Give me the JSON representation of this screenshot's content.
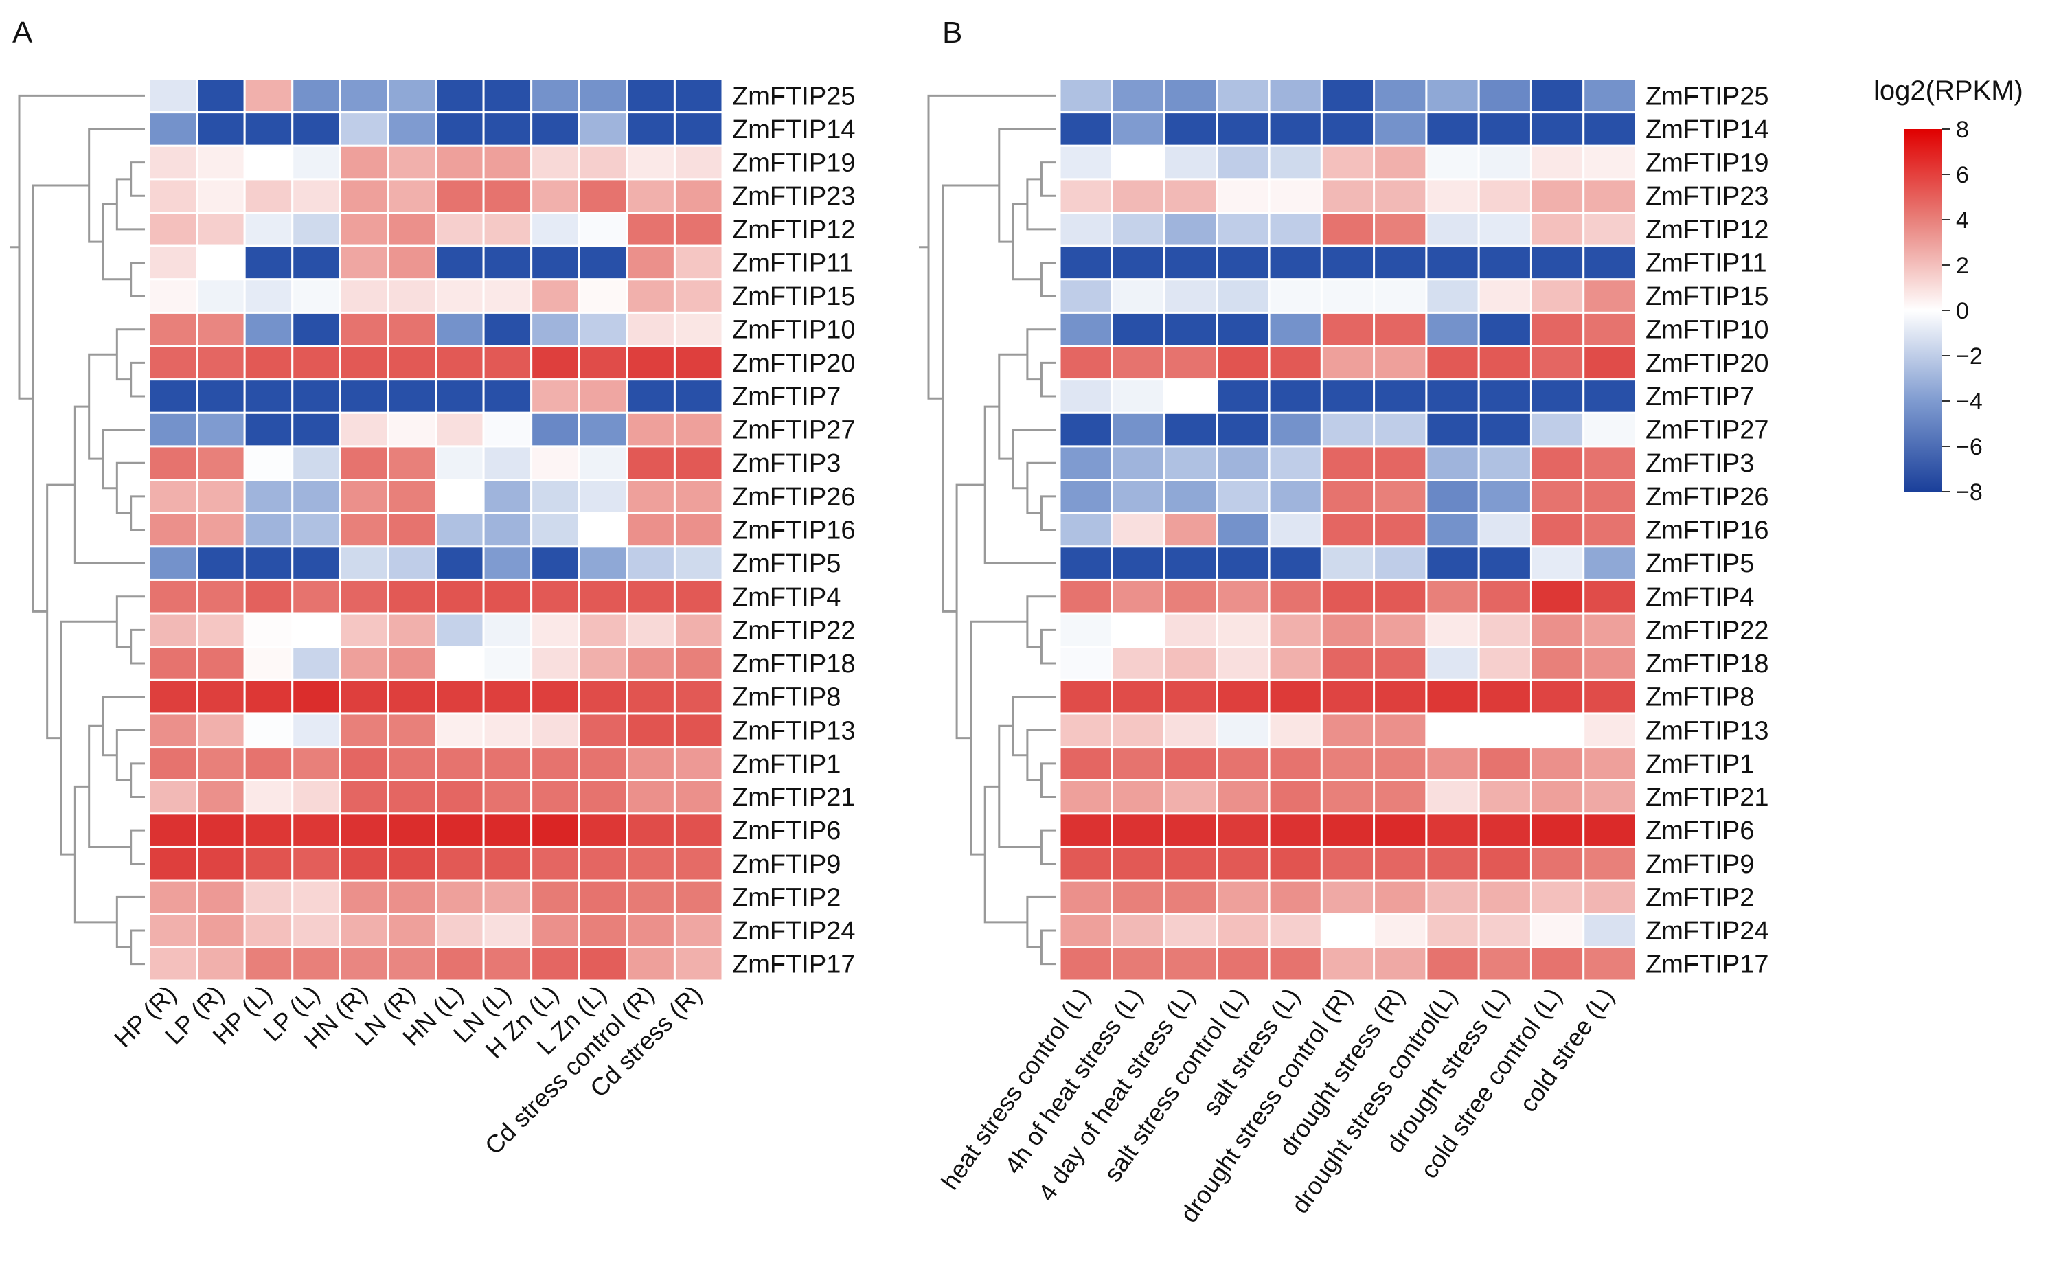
{
  "chart_data": [
    {
      "type": "heatmap",
      "panel_label": "A",
      "colorscale": {
        "min": -8,
        "max": 8,
        "low": "#2850a8",
        "mid": "#ffffff",
        "high": "#d81818"
      },
      "rows": [
        "ZmFTIP25",
        "ZmFTIP14",
        "ZmFTIP19",
        "ZmFTIP23",
        "ZmFTIP12",
        "ZmFTIP11",
        "ZmFTIP15",
        "ZmFTIP10",
        "ZmFTIP20",
        "ZmFTIP7",
        "ZmFTIP27",
        "ZmFTIP3",
        "ZmFTIP26",
        "ZmFTIP16",
        "ZmFTIP5",
        "ZmFTIP4",
        "ZmFTIP22",
        "ZmFTIP18",
        "ZmFTIP8",
        "ZmFTIP13",
        "ZmFTIP1",
        "ZmFTIP21",
        "ZmFTIP6",
        "ZmFTIP9",
        "ZmFTIP2",
        "ZmFTIP24",
        "ZmFTIP17"
      ],
      "columns": [
        "HP (R)",
        "LP (R)",
        "HP (L)",
        "LP (L)",
        "HN (R)",
        "LN (R)",
        "HN (L)",
        "LN (L)",
        "H Zn (L)",
        "L Zn (L)",
        "Cd stress control (R)",
        "Cd stress (R)"
      ],
      "values": [
        [
          -1,
          -8,
          2.5,
          -4.5,
          -4,
          -3.5,
          -8,
          -8,
          -4.5,
          -4.5,
          -8,
          -8
        ],
        [
          -4.5,
          -8,
          -8,
          -8,
          -2,
          -4,
          -8,
          -8,
          -8,
          -3,
          -8,
          -8
        ],
        [
          1,
          0.5,
          0,
          -0.5,
          3,
          2.5,
          3,
          3,
          1.2,
          1.5,
          0.7,
          1
        ],
        [
          1.3,
          0.5,
          1.5,
          1,
          3,
          2.5,
          4.5,
          4.5,
          2.5,
          4.5,
          2.5,
          3
        ],
        [
          2,
          1.5,
          -0.7,
          -1.5,
          3,
          3.5,
          1.5,
          1.7,
          -0.8,
          -0.2,
          4.5,
          4.5
        ],
        [
          1,
          0,
          -8,
          -8,
          2.8,
          3.3,
          -8,
          -8,
          -8,
          -8,
          3.5,
          1.8
        ],
        [
          0.3,
          -0.5,
          -0.8,
          -0.3,
          1,
          1,
          0.7,
          0.7,
          2.5,
          0.2,
          2.5,
          2
        ],
        [
          4,
          3.8,
          -4.5,
          -8,
          4.5,
          4.5,
          -4.5,
          -8,
          -3,
          -2,
          1,
          0.8
        ],
        [
          5,
          5,
          5.5,
          5.5,
          5.5,
          5.5,
          5.5,
          5.5,
          6.5,
          6,
          6.5,
          6.5
        ],
        [
          -8,
          -8,
          -8,
          -8,
          -8,
          -8,
          -8,
          -8,
          2.5,
          2.8,
          -8,
          -8
        ],
        [
          -4.5,
          -4,
          -8,
          -8,
          1,
          0.3,
          1,
          -0.2,
          -5,
          -4.5,
          3,
          3
        ],
        [
          4.5,
          4,
          -0.1,
          -1.5,
          4.5,
          4,
          -0.5,
          -1,
          0.3,
          -0.5,
          5.5,
          5.5
        ],
        [
          2.5,
          2.5,
          -3,
          -3,
          3.5,
          4,
          0,
          -3,
          -1.5,
          -1,
          3,
          3
        ],
        [
          3.5,
          3,
          -3,
          -2.5,
          4,
          4.5,
          -2.5,
          -3,
          -1.5,
          0,
          3.5,
          3.5
        ],
        [
          -4.5,
          -8,
          -8,
          -8,
          -1.5,
          -2,
          -8,
          -4,
          -8,
          -3.5,
          -2,
          -1.5
        ],
        [
          4.5,
          4.5,
          5.2,
          4.5,
          5,
          5.5,
          5.7,
          5.7,
          5.5,
          5.5,
          5.5,
          5.5
        ],
        [
          2.2,
          1.8,
          0.1,
          0,
          1.8,
          2.5,
          -1.8,
          -0.5,
          0.7,
          2,
          1.2,
          2.5
        ],
        [
          4.5,
          4.5,
          0.2,
          -1.7,
          3,
          3.5,
          0,
          -0.3,
          1,
          2.5,
          3.5,
          4
        ],
        [
          6.5,
          6.5,
          6.8,
          7.2,
          6.5,
          6.5,
          6.5,
          6.5,
          6.5,
          6,
          5.7,
          5.5
        ],
        [
          3.5,
          2.5,
          -0.1,
          -0.8,
          4,
          4,
          0.5,
          0.7,
          1,
          5,
          5.7,
          5.7
        ],
        [
          4.5,
          4,
          4.5,
          4,
          5,
          4.5,
          4.5,
          4.5,
          4.5,
          4.5,
          3.5,
          3.2
        ],
        [
          2.2,
          3.5,
          0.7,
          1.2,
          5,
          5,
          5,
          4.5,
          4.5,
          4.5,
          3.5,
          3.5
        ],
        [
          7,
          7,
          6.8,
          6.8,
          7,
          7.2,
          7.3,
          7.3,
          7.5,
          6.8,
          6,
          5.8
        ],
        [
          6.5,
          6.3,
          5.7,
          5.3,
          6,
          6,
          5.5,
          5.5,
          5,
          5,
          4.8,
          4.8
        ],
        [
          3,
          3.2,
          1.5,
          1.3,
          3.5,
          3.5,
          3,
          2.8,
          4.2,
          4.5,
          4.2,
          4.2
        ],
        [
          2.5,
          3,
          2,
          1.5,
          2.5,
          3,
          1.5,
          1,
          3.5,
          4,
          3.5,
          2.8
        ],
        [
          2,
          2.5,
          4,
          4,
          3.8,
          3.8,
          4.5,
          4.3,
          5,
          5.3,
          3,
          2.5
        ]
      ]
    },
    {
      "type": "heatmap",
      "panel_label": "B",
      "colorscale": {
        "min": -8,
        "max": 8,
        "low": "#2850a8",
        "mid": "#ffffff",
        "high": "#d81818"
      },
      "rows": [
        "ZmFTIP25",
        "ZmFTIP14",
        "ZmFTIP19",
        "ZmFTIP23",
        "ZmFTIP12",
        "ZmFTIP11",
        "ZmFTIP15",
        "ZmFTIP10",
        "ZmFTIP20",
        "ZmFTIP7",
        "ZmFTIP27",
        "ZmFTIP3",
        "ZmFTIP26",
        "ZmFTIP16",
        "ZmFTIP5",
        "ZmFTIP4",
        "ZmFTIP22",
        "ZmFTIP18",
        "ZmFTIP8",
        "ZmFTIP13",
        "ZmFTIP1",
        "ZmFTIP21",
        "ZmFTIP6",
        "ZmFTIP9",
        "ZmFTIP2",
        "ZmFTIP24",
        "ZmFTIP17"
      ],
      "columns": [
        "heat stress control (L)",
        "4h of heat stress (L)",
        "4 day of heat stress (L)",
        "salt stress control (L)",
        "salt stress (L)",
        "drought stress control (R)",
        "drought stress (R)",
        "drought stress control(L)",
        "drought stress (L)",
        "cold stree control (L)",
        "cold stree  (L)"
      ],
      "values": [
        [
          -2.5,
          -4,
          -4.5,
          -2.5,
          -3,
          -8,
          -4.5,
          -3.5,
          -5,
          -8,
          -4.5
        ],
        [
          -8,
          -4,
          -8,
          -8,
          -8,
          -8,
          -4.5,
          -8,
          -8,
          -8,
          -8
        ],
        [
          -0.8,
          0,
          -1,
          -2,
          -1.5,
          2,
          2.5,
          -0.3,
          -0.5,
          0.7,
          0.5
        ],
        [
          1.5,
          2.2,
          2.2,
          0.3,
          0.3,
          2.2,
          2.2,
          0.7,
          1.3,
          2.5,
          2.5
        ],
        [
          -1,
          -1.8,
          -3,
          -2,
          -2,
          4.5,
          4,
          -1,
          -0.8,
          2,
          1.5
        ],
        [
          -8,
          -8,
          -8,
          -8,
          -8,
          -8,
          -8,
          -8,
          -8,
          -8,
          -8
        ],
        [
          -2,
          -0.5,
          -1,
          -1.3,
          -0.3,
          -0.3,
          -0.3,
          -1.3,
          0.7,
          2,
          3.5
        ],
        [
          -4.5,
          -8,
          -8,
          -8,
          -4.5,
          5,
          5,
          -4.5,
          -8,
          5,
          4.5
        ],
        [
          5,
          4.5,
          4.5,
          5.7,
          5.5,
          3,
          3,
          5.5,
          5.5,
          5,
          6
        ],
        [
          -1,
          -0.5,
          0,
          -8,
          -8,
          -8,
          -8,
          -8,
          -8,
          -8,
          -8
        ],
        [
          -8,
          -4.5,
          -8,
          -8,
          -4.5,
          -2,
          -2,
          -8,
          -8,
          -2,
          -0.3
        ],
        [
          -4,
          -3,
          -2.5,
          -3,
          -2,
          5,
          5,
          -3,
          -2.5,
          5,
          4.5
        ],
        [
          -4,
          -3,
          -3.5,
          -2,
          -3,
          4.5,
          4,
          -5,
          -4,
          4.5,
          4.5
        ],
        [
          -2.5,
          1,
          3,
          -4.5,
          -1,
          5,
          5,
          -4.5,
          -1,
          5,
          4.5
        ],
        [
          -8,
          -8,
          -8,
          -8,
          -8,
          -1.5,
          -2,
          -8,
          -8,
          -0.8,
          -3.5
        ],
        [
          4.5,
          3.5,
          4,
          3.5,
          4.5,
          5.5,
          5.5,
          4,
          5,
          6.8,
          6
        ],
        [
          -0.3,
          0,
          1,
          0.8,
          2.5,
          3.5,
          3,
          0.7,
          1.5,
          3.5,
          3
        ],
        [
          -0.2,
          1.5,
          2,
          1,
          2.5,
          5,
          5,
          -1,
          1.5,
          4,
          3.5
        ],
        [
          6,
          6,
          6,
          6.5,
          6.7,
          6.3,
          6.5,
          6.8,
          6.7,
          6.3,
          6
        ],
        [
          1.8,
          1.8,
          1,
          -0.5,
          0.8,
          3.5,
          3.5,
          0,
          0,
          0,
          0.7
        ],
        [
          5,
          4.5,
          5,
          4.5,
          4.5,
          4,
          4,
          3.5,
          4.5,
          3.5,
          3
        ],
        [
          3,
          3,
          2.5,
          3.5,
          4.5,
          4,
          4,
          1,
          2.5,
          3,
          2.7
        ],
        [
          7,
          7,
          7,
          6.7,
          7,
          7.2,
          7.3,
          6.8,
          7,
          7.3,
          7.3
        ],
        [
          5.5,
          5.5,
          5.5,
          5.5,
          5.7,
          5,
          5,
          5.2,
          5.5,
          4.5,
          4
        ],
        [
          3.5,
          4,
          4,
          3,
          3.5,
          2.7,
          3,
          2.2,
          2.5,
          2,
          2.3
        ],
        [
          3,
          2.2,
          1.5,
          2,
          1.5,
          0,
          0.5,
          1.7,
          1.5,
          0.3,
          -1.2
        ],
        [
          4.5,
          4.2,
          4.2,
          4.5,
          4.5,
          2.5,
          2.7,
          4.5,
          4,
          4.5,
          4
        ]
      ]
    }
  ],
  "legend": {
    "title": "log2(RPKM)",
    "ticks": [
      "8",
      "6",
      "4",
      "2",
      "0",
      "−2",
      "−4",
      "−6",
      "−8"
    ],
    "tick_values": [
      8,
      6,
      4,
      2,
      0,
      -2,
      -4,
      -6,
      -8
    ],
    "placement": "top-right"
  }
}
